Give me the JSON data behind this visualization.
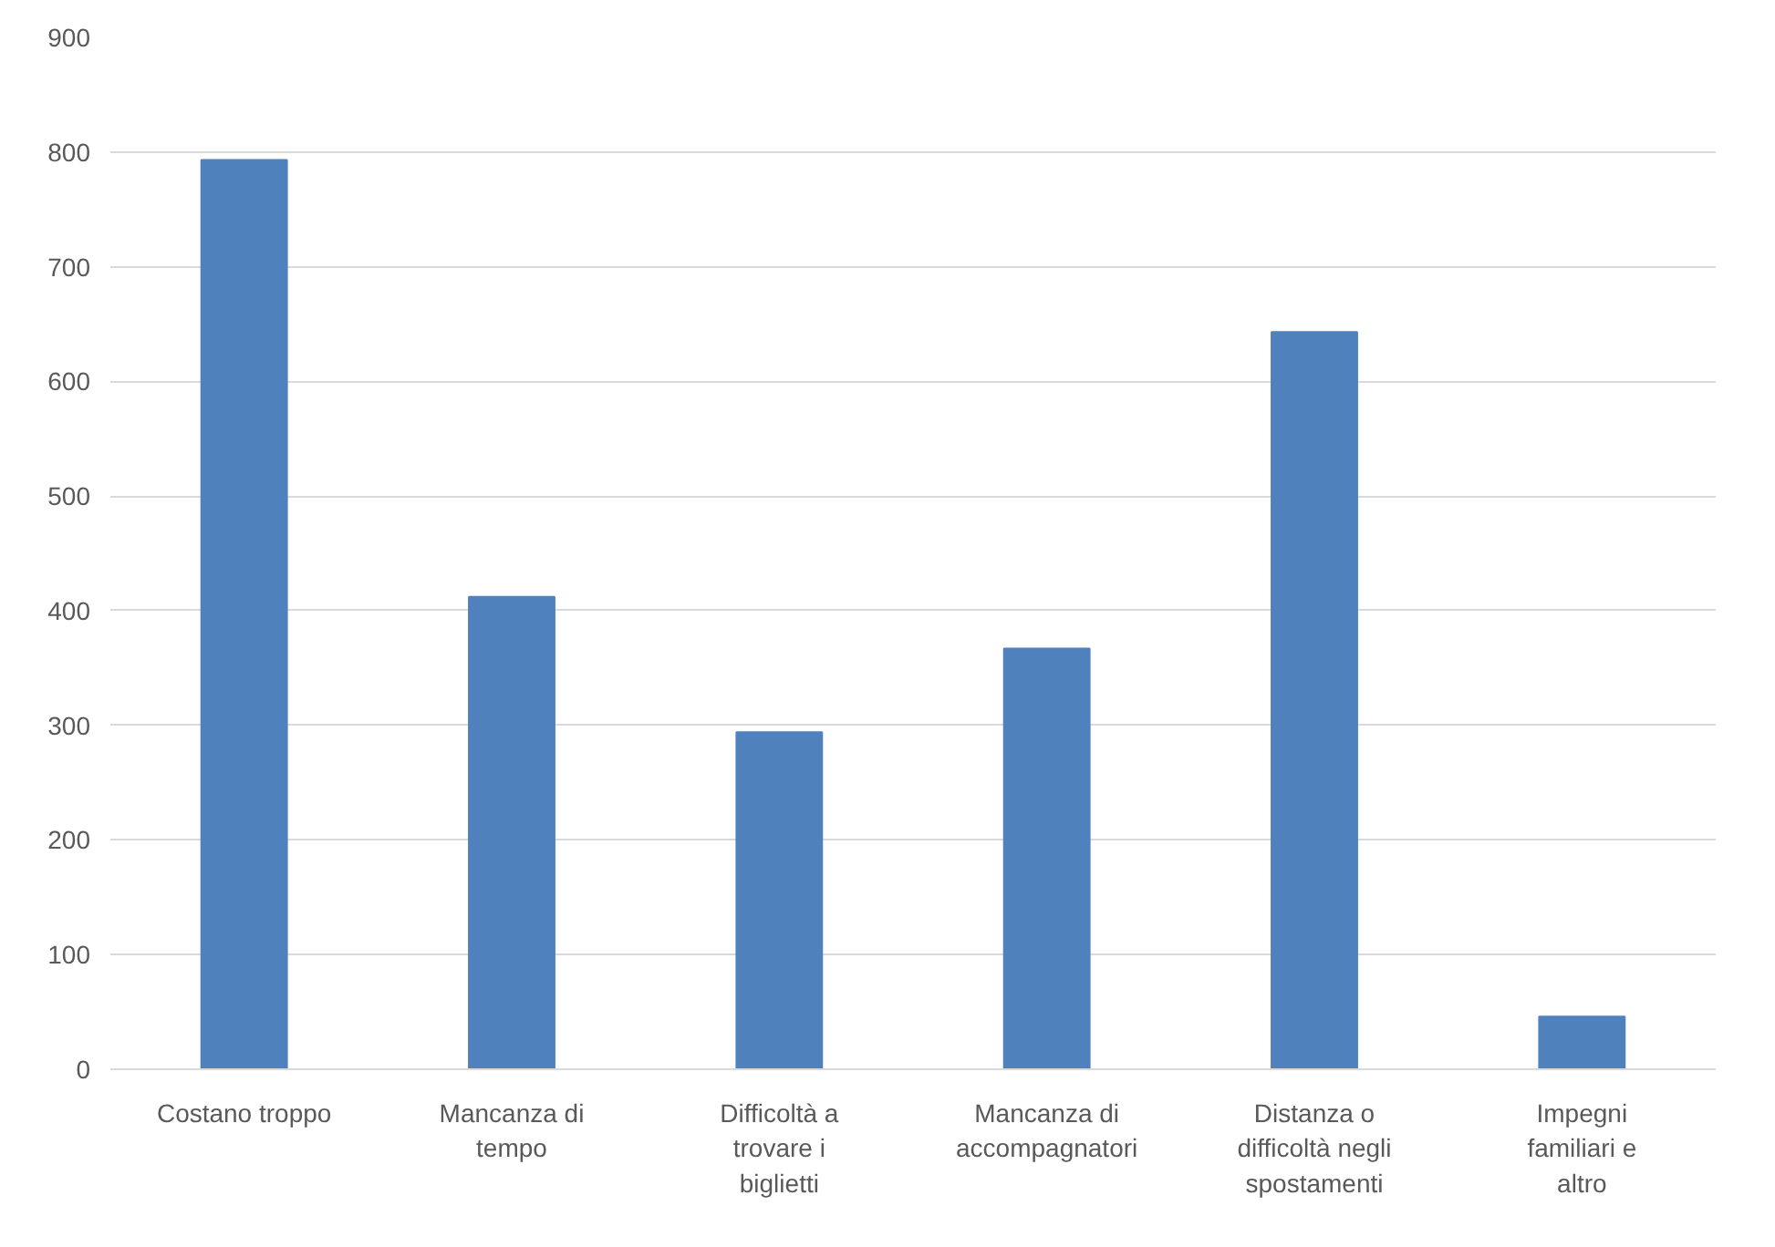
{
  "chart_data": {
    "type": "bar",
    "categories": [
      "Costano troppo",
      "Mancanza di tempo",
      "Difficoltà a trovare i biglietti",
      "Mancanza di accompagnatori",
      "Distanza o difficoltà negli spostamenti",
      "Impegni familiari e altro"
    ],
    "values": [
      793,
      412,
      294,
      367,
      643,
      46
    ],
    "color": "#4f81bd",
    "ylim": [
      0,
      900
    ],
    "yticks": [
      0,
      100,
      200,
      300,
      400,
      500,
      600,
      700,
      800,
      900
    ],
    "grid": "y"
  }
}
